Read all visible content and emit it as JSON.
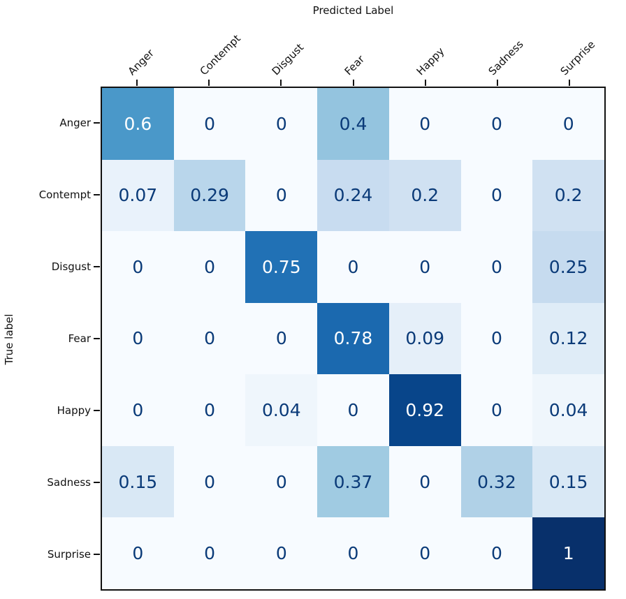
{
  "axes": {
    "x_title": "Predicted Label",
    "y_title": "True label"
  },
  "chart_data": {
    "type": "heatmap",
    "title": "Predicted Label",
    "xlabel": "Predicted Label",
    "ylabel": "True label",
    "x_tick_labels": [
      "Anger",
      "Contempt",
      "Disgust",
      "Fear",
      "Happy",
      "Sadness",
      "Surprise"
    ],
    "y_tick_labels": [
      "Anger",
      "Contempt",
      "Disgust",
      "Fear",
      "Happy",
      "Sadness",
      "Surprise"
    ],
    "matrix": [
      [
        0.6,
        0,
        0,
        0.4,
        0,
        0,
        0
      ],
      [
        0.07,
        0.29,
        0,
        0.24,
        0.2,
        0,
        0.2
      ],
      [
        0,
        0,
        0.75,
        0,
        0,
        0,
        0.25
      ],
      [
        0,
        0,
        0,
        0.78,
        0.09,
        0,
        0.12
      ],
      [
        0,
        0,
        0.04,
        0,
        0.92,
        0,
        0.04
      ],
      [
        0.15,
        0,
        0,
        0.37,
        0,
        0.32,
        0.15
      ],
      [
        0,
        0,
        0,
        0,
        0,
        0,
        1
      ]
    ],
    "value_range": [
      0,
      1
    ],
    "colormap": {
      "name": "Blues",
      "anchors": [
        "#f7fbff",
        "#deebf7",
        "#c6dbef",
        "#9ecae1",
        "#6baed6",
        "#4292c6",
        "#2171b5",
        "#08519c",
        "#08306b"
      ]
    },
    "cell_text_color_dark": "#0a3a78",
    "cell_text_color_light": "#ffffff",
    "light_text_threshold": 0.5,
    "grid": false,
    "legend": "none"
  }
}
